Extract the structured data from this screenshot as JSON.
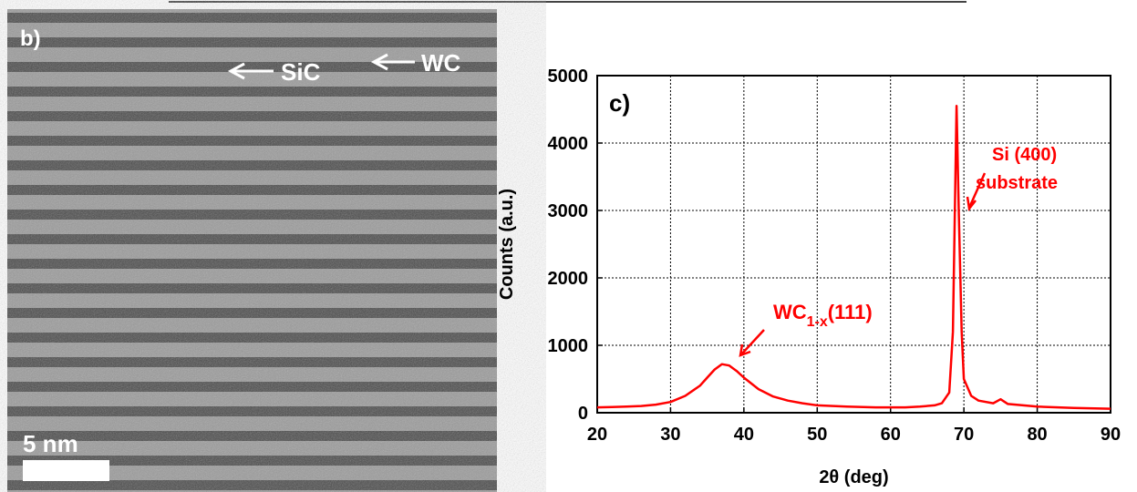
{
  "panel_b": {
    "label": "b)",
    "annotations": [
      "SiC",
      "WC"
    ],
    "scale_bar": "5 nm"
  },
  "chart_data": {
    "type": "line",
    "panel_label": "c)",
    "x_label": "2θ (deg)",
    "y_label": "Counts (a.u.)",
    "x": [
      20,
      22,
      24,
      26,
      28,
      30,
      32,
      34,
      35,
      36,
      37,
      38,
      39,
      40,
      42,
      44,
      46,
      48,
      50,
      54,
      58,
      62,
      64,
      66,
      67,
      68,
      68.5,
      69,
      69.3,
      69.7,
      70,
      71,
      72,
      74,
      75,
      76,
      80,
      85,
      90
    ],
    "values": [
      80,
      85,
      90,
      100,
      120,
      160,
      250,
      400,
      520,
      640,
      720,
      700,
      620,
      520,
      350,
      240,
      180,
      140,
      110,
      90,
      80,
      80,
      90,
      110,
      140,
      300,
      1200,
      4550,
      3000,
      1200,
      500,
      250,
      180,
      140,
      200,
      130,
      90,
      70,
      60
    ],
    "color": "#ff0000",
    "xlim": [
      20,
      90
    ],
    "xticks": [
      20,
      30,
      40,
      50,
      60,
      70,
      80,
      90
    ],
    "ylim": [
      0,
      5000
    ],
    "yticks": [
      0,
      1000,
      2000,
      3000,
      4000,
      5000
    ],
    "grid": true,
    "annotations": [
      "WC",
      "1-x",
      "(111)",
      "Si (400)",
      "substrate"
    ]
  }
}
